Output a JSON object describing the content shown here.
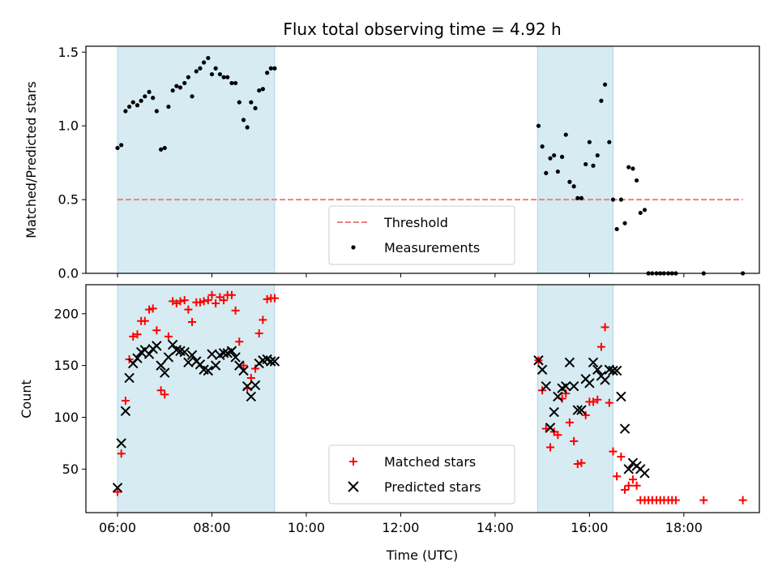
{
  "chart_data": [
    {
      "type": "scatter",
      "title": "Flux total observing time = 4.92 h",
      "xlabel": "",
      "ylabel": "Matched/Predicted stars",
      "xlim": [
        5.33,
        19.6
      ],
      "ylim": [
        0,
        1.54
      ],
      "yticks": [
        0.0,
        0.5,
        1.0,
        1.5
      ],
      "ytick_labels": [
        "0.0",
        "0.5",
        "1.0",
        "1.5"
      ],
      "xticks": [
        6,
        8,
        10,
        12,
        14,
        16,
        18
      ],
      "shaded_intervals": [
        [
          6.0,
          9.33
        ],
        [
          14.9,
          16.5
        ]
      ],
      "threshold": {
        "name": "Threshold",
        "y": 0.5,
        "x_range": [
          6.0,
          19.25
        ],
        "color": "#f08080"
      },
      "legend_location": "lower-center",
      "series": [
        {
          "name": "Measurements",
          "marker": "dot",
          "color": "#000000",
          "points": [
            [
              6.0,
              0.85
            ],
            [
              6.08,
              0.87
            ],
            [
              6.17,
              1.1
            ],
            [
              6.25,
              1.13
            ],
            [
              6.33,
              1.16
            ],
            [
              6.42,
              1.14
            ],
            [
              6.5,
              1.17
            ],
            [
              6.58,
              1.2
            ],
            [
              6.67,
              1.23
            ],
            [
              6.75,
              1.19
            ],
            [
              6.83,
              1.1
            ],
            [
              6.92,
              0.84
            ],
            [
              7.0,
              0.85
            ],
            [
              7.08,
              1.13
            ],
            [
              7.17,
              1.24
            ],
            [
              7.25,
              1.27
            ],
            [
              7.33,
              1.26
            ],
            [
              7.42,
              1.29
            ],
            [
              7.5,
              1.33
            ],
            [
              7.58,
              1.2
            ],
            [
              7.67,
              1.37
            ],
            [
              7.75,
              1.39
            ],
            [
              7.83,
              1.43
            ],
            [
              7.92,
              1.46
            ],
            [
              8.0,
              1.35
            ],
            [
              8.08,
              1.39
            ],
            [
              8.17,
              1.35
            ],
            [
              8.25,
              1.33
            ],
            [
              8.33,
              1.33
            ],
            [
              8.42,
              1.29
            ],
            [
              8.5,
              1.29
            ],
            [
              8.58,
              1.16
            ],
            [
              8.67,
              1.04
            ],
            [
              8.75,
              0.99
            ],
            [
              8.83,
              1.16
            ],
            [
              8.92,
              1.12
            ],
            [
              9.0,
              1.24
            ],
            [
              9.08,
              1.25
            ],
            [
              9.17,
              1.36
            ],
            [
              9.25,
              1.39
            ],
            [
              9.33,
              1.39
            ],
            [
              14.92,
              1.0
            ],
            [
              15.0,
              0.86
            ],
            [
              15.08,
              0.68
            ],
            [
              15.17,
              0.78
            ],
            [
              15.25,
              0.8
            ],
            [
              15.33,
              0.69
            ],
            [
              15.42,
              0.79
            ],
            [
              15.5,
              0.94
            ],
            [
              15.58,
              0.62
            ],
            [
              15.67,
              0.59
            ],
            [
              15.75,
              0.51
            ],
            [
              15.83,
              0.51
            ],
            [
              15.92,
              0.74
            ],
            [
              16.0,
              0.89
            ],
            [
              16.08,
              0.73
            ],
            [
              16.17,
              0.8
            ],
            [
              16.25,
              1.17
            ],
            [
              16.33,
              1.28
            ],
            [
              16.42,
              0.89
            ],
            [
              16.5,
              0.5
            ],
            [
              16.58,
              0.3
            ],
            [
              16.67,
              0.5
            ],
            [
              16.75,
              0.34
            ],
            [
              16.83,
              0.72
            ],
            [
              16.92,
              0.71
            ],
            [
              17.0,
              0.63
            ],
            [
              17.08,
              0.41
            ],
            [
              17.17,
              0.43
            ],
            [
              17.25,
              0.0
            ],
            [
              17.33,
              0.0
            ],
            [
              17.42,
              0.0
            ],
            [
              17.5,
              0.0
            ],
            [
              17.58,
              0.0
            ],
            [
              17.67,
              0.0
            ],
            [
              17.75,
              0.0
            ],
            [
              17.83,
              0.0
            ],
            [
              18.42,
              0.0
            ],
            [
              19.25,
              0.0
            ]
          ]
        }
      ]
    },
    {
      "type": "scatter",
      "title": "",
      "xlabel": "Time (UTC)",
      "ylabel": "Count",
      "xlim": [
        5.33,
        19.6
      ],
      "ylim": [
        8,
        228
      ],
      "yticks": [
        50,
        100,
        150,
        200
      ],
      "ytick_labels": [
        "50",
        "100",
        "150",
        "200"
      ],
      "xticks": [
        6,
        8,
        10,
        12,
        14,
        16,
        18
      ],
      "xtick_labels": [
        "06:00",
        "08:00",
        "10:00",
        "12:00",
        "14:00",
        "16:00",
        "18:00"
      ],
      "shaded_intervals": [
        [
          6.0,
          9.33
        ],
        [
          14.9,
          16.5
        ]
      ],
      "legend_location": "lower-center",
      "series": [
        {
          "name": "Matched stars",
          "marker": "plus",
          "color": "#ff0000",
          "points": [
            [
              6.0,
              28
            ],
            [
              6.08,
              65
            ],
            [
              6.17,
              116
            ],
            [
              6.25,
              156
            ],
            [
              6.33,
              178
            ],
            [
              6.42,
              180
            ],
            [
              6.5,
              193
            ],
            [
              6.58,
              193
            ],
            [
              6.67,
              204
            ],
            [
              6.75,
              205
            ],
            [
              6.83,
              184
            ],
            [
              6.92,
              126
            ],
            [
              7.0,
              122
            ],
            [
              7.08,
              178
            ],
            [
              7.17,
              212
            ],
            [
              7.25,
              210
            ],
            [
              7.33,
              212
            ],
            [
              7.42,
              213
            ],
            [
              7.5,
              204
            ],
            [
              7.58,
              192
            ],
            [
              7.67,
              211
            ],
            [
              7.75,
              211
            ],
            [
              7.83,
              212
            ],
            [
              7.92,
              213
            ],
            [
              8.0,
              218
            ],
            [
              8.08,
              210
            ],
            [
              8.17,
              216
            ],
            [
              8.25,
              213
            ],
            [
              8.33,
              218
            ],
            [
              8.42,
              218
            ],
            [
              8.5,
              203
            ],
            [
              8.58,
              173
            ],
            [
              8.67,
              150
            ],
            [
              8.75,
              128
            ],
            [
              8.83,
              138
            ],
            [
              8.92,
              147
            ],
            [
              9.0,
              181
            ],
            [
              9.08,
              194
            ],
            [
              9.17,
              214
            ],
            [
              9.25,
              215
            ],
            [
              9.33,
              215
            ],
            [
              14.92,
              155
            ],
            [
              15.0,
              126
            ],
            [
              15.08,
              89
            ],
            [
              15.17,
              71
            ],
            [
              15.25,
              86
            ],
            [
              15.33,
              83
            ],
            [
              15.42,
              118
            ],
            [
              15.5,
              123
            ],
            [
              15.58,
              95
            ],
            [
              15.67,
              77
            ],
            [
              15.75,
              55
            ],
            [
              15.83,
              56
            ],
            [
              15.92,
              102
            ],
            [
              16.0,
              115
            ],
            [
              16.08,
              115
            ],
            [
              16.17,
              117
            ],
            [
              16.25,
              168
            ],
            [
              16.33,
              187
            ],
            [
              16.42,
              114
            ],
            [
              16.5,
              67
            ],
            [
              16.58,
              43
            ],
            [
              16.67,
              62
            ],
            [
              16.75,
              30
            ],
            [
              16.83,
              34
            ],
            [
              16.92,
              40
            ],
            [
              17.0,
              34
            ],
            [
              17.08,
              20
            ],
            [
              17.17,
              20
            ],
            [
              17.25,
              20
            ],
            [
              17.33,
              20
            ],
            [
              17.42,
              20
            ],
            [
              17.5,
              20
            ],
            [
              17.58,
              20
            ],
            [
              17.67,
              20
            ],
            [
              17.75,
              20
            ],
            [
              17.83,
              20
            ],
            [
              18.42,
              20
            ],
            [
              19.25,
              20
            ]
          ]
        },
        {
          "name": "Predicted stars",
          "marker": "x",
          "color": "#000000",
          "points": [
            [
              6.0,
              32
            ],
            [
              6.08,
              75
            ],
            [
              6.17,
              106
            ],
            [
              6.25,
              138
            ],
            [
              6.33,
              152
            ],
            [
              6.42,
              157
            ],
            [
              6.5,
              163
            ],
            [
              6.58,
              165
            ],
            [
              6.67,
              161
            ],
            [
              6.75,
              166
            ],
            [
              6.83,
              169
            ],
            [
              6.92,
              150
            ],
            [
              7.0,
              143
            ],
            [
              7.08,
              158
            ],
            [
              7.17,
              170
            ],
            [
              7.25,
              165
            ],
            [
              7.33,
              164
            ],
            [
              7.42,
              163
            ],
            [
              7.5,
              153
            ],
            [
              7.58,
              160
            ],
            [
              7.67,
              154
            ],
            [
              7.75,
              151
            ],
            [
              7.83,
              146
            ],
            [
              7.92,
              145
            ],
            [
              8.0,
              161
            ],
            [
              8.08,
              150
            ],
            [
              8.17,
              160
            ],
            [
              8.25,
              162
            ],
            [
              8.33,
              162
            ],
            [
              8.42,
              164
            ],
            [
              8.5,
              158
            ],
            [
              8.58,
              150
            ],
            [
              8.67,
              145
            ],
            [
              8.75,
              130
            ],
            [
              8.83,
              120
            ],
            [
              8.92,
              131
            ],
            [
              9.0,
              152
            ],
            [
              9.08,
              155
            ],
            [
              9.17,
              156
            ],
            [
              9.25,
              154
            ],
            [
              9.33,
              154
            ],
            [
              14.92,
              155
            ],
            [
              15.0,
              146
            ],
            [
              15.08,
              130
            ],
            [
              15.17,
              90
            ],
            [
              15.25,
              105
            ],
            [
              15.33,
              120
            ],
            [
              15.42,
              128
            ],
            [
              15.5,
              130
            ],
            [
              15.58,
              153
            ],
            [
              15.67,
              130
            ],
            [
              15.75,
              107
            ],
            [
              15.83,
              107
            ],
            [
              15.92,
              137
            ],
            [
              16.0,
              133
            ],
            [
              16.08,
              153
            ],
            [
              16.17,
              146
            ],
            [
              16.25,
              140
            ],
            [
              16.33,
              136
            ],
            [
              16.42,
              146
            ],
            [
              16.5,
              145
            ],
            [
              16.58,
              145
            ],
            [
              16.67,
              120
            ],
            [
              16.75,
              89
            ],
            [
              16.83,
              50
            ],
            [
              16.92,
              56
            ],
            [
              17.0,
              53
            ],
            [
              17.08,
              50
            ],
            [
              17.17,
              46
            ]
          ]
        }
      ]
    }
  ]
}
